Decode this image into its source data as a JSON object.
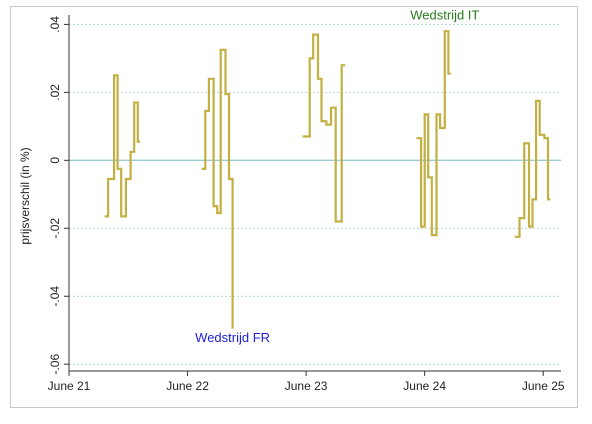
{
  "chart_data": {
    "type": "line",
    "title": "",
    "xlabel": "",
    "ylabel": "prijsverschil (in %)",
    "xlim": [
      21,
      25.15
    ],
    "ylim": [
      -0.062,
      0.041
    ],
    "x_ticks": [
      21,
      22,
      23,
      24,
      25
    ],
    "x_tick_labels": [
      "June 21",
      "June 22",
      "June 23",
      "June 24",
      "June 25"
    ],
    "y_ticks": [
      0.04,
      0.02,
      0,
      -0.02,
      -0.04,
      -0.06
    ],
    "y_tick_labels": [
      ".04",
      ".02",
      "0",
      "-.02",
      "-.04",
      "-.06"
    ],
    "grid": true,
    "line_color": "#c2b044",
    "zero_line_color": "#9ccbd3",
    "grid_color": "#9ccbd3",
    "series": [
      {
        "segments": [
          [
            [
              21.3,
              -0.0165
            ],
            [
              21.33,
              -0.0165
            ],
            [
              21.33,
              -0.0055
            ],
            [
              21.38,
              -0.0055
            ],
            [
              21.38,
              0.025
            ],
            [
              21.41,
              0.025
            ],
            [
              21.41,
              -0.0025
            ],
            [
              21.44,
              -0.0025
            ],
            [
              21.44,
              -0.0165
            ],
            [
              21.48,
              -0.0165
            ],
            [
              21.48,
              -0.0055
            ],
            [
              21.52,
              -0.0055
            ],
            [
              21.52,
              0.0025
            ],
            [
              21.55,
              0.0025
            ],
            [
              21.55,
              0.017
            ],
            [
              21.58,
              0.017
            ],
            [
              21.58,
              0.0055
            ],
            [
              21.6,
              0.0055
            ]
          ],
          [
            [
              22.12,
              -0.0025
            ],
            [
              22.15,
              -0.0025
            ],
            [
              22.15,
              0.0145
            ],
            [
              22.18,
              0.0145
            ],
            [
              22.18,
              0.024
            ],
            [
              22.22,
              0.024
            ],
            [
              22.22,
              -0.0135
            ],
            [
              22.25,
              -0.0135
            ],
            [
              22.25,
              -0.0155
            ],
            [
              22.28,
              -0.0155
            ],
            [
              22.28,
              0.0325
            ],
            [
              22.32,
              0.0325
            ],
            [
              22.32,
              0.0195
            ],
            [
              22.35,
              0.0195
            ],
            [
              22.35,
              -0.0055
            ],
            [
              22.38,
              -0.0055
            ],
            [
              22.38,
              -0.0495
            ]
          ],
          [
            [
              22.97,
              0.007
            ],
            [
              23.03,
              0.007
            ],
            [
              23.03,
              0.03
            ],
            [
              23.06,
              0.03
            ],
            [
              23.06,
              0.037
            ],
            [
              23.1,
              0.037
            ],
            [
              23.1,
              0.024
            ],
            [
              23.13,
              0.024
            ],
            [
              23.13,
              0.0115
            ],
            [
              23.17,
              0.0115
            ],
            [
              23.17,
              0.0105
            ],
            [
              23.21,
              0.0105
            ],
            [
              23.21,
              0.0155
            ],
            [
              23.25,
              0.0155
            ],
            [
              23.25,
              -0.018
            ],
            [
              23.3,
              -0.018
            ],
            [
              23.3,
              0.028
            ],
            [
              23.33,
              0.028
            ]
          ],
          [
            [
              23.93,
              0.0065
            ],
            [
              23.97,
              0.0065
            ],
            [
              23.97,
              -0.0195
            ],
            [
              24.0,
              -0.0195
            ],
            [
              24.0,
              0.0135
            ],
            [
              24.03,
              0.0135
            ],
            [
              24.03,
              -0.005
            ],
            [
              24.06,
              -0.005
            ],
            [
              24.06,
              -0.022
            ],
            [
              24.1,
              -0.022
            ],
            [
              24.1,
              0.0135
            ],
            [
              24.13,
              0.0135
            ],
            [
              24.13,
              0.0095
            ],
            [
              24.17,
              0.0095
            ],
            [
              24.17,
              0.038
            ],
            [
              24.2,
              0.038
            ],
            [
              24.2,
              0.0255
            ],
            [
              24.22,
              0.0255
            ]
          ],
          [
            [
              24.76,
              -0.0225
            ],
            [
              24.8,
              -0.0225
            ],
            [
              24.8,
              -0.017
            ],
            [
              24.84,
              -0.017
            ],
            [
              24.84,
              0.005
            ],
            [
              24.88,
              0.005
            ],
            [
              24.88,
              -0.0195
            ],
            [
              24.91,
              -0.0195
            ],
            [
              24.91,
              -0.0115
            ],
            [
              24.94,
              -0.0115
            ],
            [
              24.94,
              0.0175
            ],
            [
              24.97,
              0.0175
            ],
            [
              24.97,
              0.0075
            ],
            [
              25.01,
              0.0075
            ],
            [
              25.01,
              0.0065
            ],
            [
              25.04,
              0.0065
            ],
            [
              25.04,
              -0.0115
            ],
            [
              25.06,
              -0.0115
            ]
          ]
        ]
      }
    ],
    "annotations": [
      {
        "text": "Wedstrijd FR",
        "x": 22.38,
        "y": -0.0535,
        "color": "#1f20e0"
      },
      {
        "text": "Wedstrijd IT",
        "x": 24.17,
        "y": 0.0415,
        "color": "#2a7a1e"
      }
    ]
  }
}
